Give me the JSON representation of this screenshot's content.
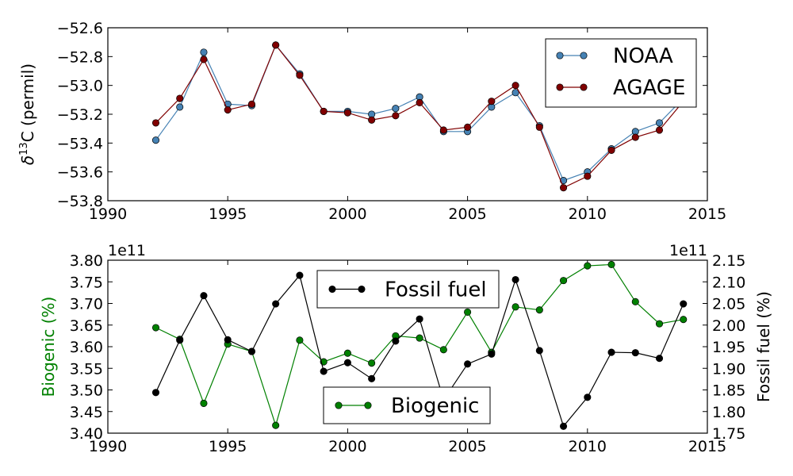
{
  "chart_data": [
    {
      "type": "line",
      "title": "",
      "xlabel": "",
      "ylabel_parts": [
        "δ",
        "13",
        "C (permil)"
      ],
      "xlim": [
        1990,
        2015
      ],
      "ylim": [
        -53.8,
        -52.6
      ],
      "xticks": [
        1990,
        1995,
        2000,
        2005,
        2010,
        2015
      ],
      "xtick_labels": [
        "1990",
        "1995",
        "2000",
        "2005",
        "2010",
        "2015"
      ],
      "yticks": [
        -53.8,
        -53.6,
        -53.4,
        -53.2,
        -53.0,
        -52.8,
        -52.6
      ],
      "ytick_labels": [
        "−53.8",
        "−53.6",
        "−53.4",
        "−53.2",
        "−53.0",
        "−52.8",
        "−52.6"
      ],
      "legend_position": "top-right",
      "x": [
        1992,
        1993,
        1994,
        1995,
        1996,
        1997,
        1998,
        1999,
        2000,
        2001,
        2002,
        2003,
        2004,
        2005,
        2006,
        2007,
        2008,
        2009,
        2010,
        2011,
        2012,
        2013,
        2014
      ],
      "series": [
        {
          "name": "NOAA",
          "color": "#4682b4",
          "values": [
            -53.38,
            -53.15,
            -52.77,
            -53.13,
            -53.14,
            -52.72,
            -52.92,
            -53.18,
            -53.18,
            -53.2,
            -53.16,
            -53.08,
            -53.32,
            -53.32,
            -53.15,
            -53.05,
            -53.28,
            -53.66,
            -53.6,
            -53.44,
            -53.32,
            -53.26,
            -53.09
          ]
        },
        {
          "name": "AGAGE",
          "color": "#800000",
          "values": [
            -53.26,
            -53.09,
            -52.82,
            -53.17,
            -53.13,
            -52.72,
            -52.93,
            -53.18,
            -53.19,
            -53.24,
            -53.21,
            -53.12,
            -53.31,
            -53.29,
            -53.11,
            -53.0,
            -53.29,
            -53.71,
            -53.63,
            -53.45,
            -53.36,
            -53.31,
            -53.11
          ]
        }
      ]
    },
    {
      "type": "line",
      "title": "",
      "xlabel": "",
      "ylabel_left": "Biogenic (%)",
      "ylabel_right": "Fossil fuel (%)",
      "offset_left": "1e11",
      "offset_right": "1e11",
      "xlim": [
        1990,
        2015
      ],
      "ylim_left": [
        3.4,
        3.8
      ],
      "ylim_right": [
        1.75,
        2.15
      ],
      "xticks": [
        1990,
        1995,
        2000,
        2005,
        2010,
        2015
      ],
      "xtick_labels": [
        "1990",
        "1995",
        "2000",
        "2005",
        "2010",
        "2015"
      ],
      "yticks_left": [
        3.4,
        3.45,
        3.5,
        3.55,
        3.6,
        3.65,
        3.7,
        3.75,
        3.8
      ],
      "ytick_labels_left": [
        "3.40",
        "3.45",
        "3.50",
        "3.55",
        "3.60",
        "3.65",
        "3.70",
        "3.75",
        "3.80"
      ],
      "yticks_right": [
        1.75,
        1.8,
        1.85,
        1.9,
        1.95,
        2.0,
        2.05,
        2.1,
        2.15
      ],
      "ytick_labels_right": [
        "1.75",
        "1.80",
        "1.85",
        "1.90",
        "1.95",
        "2.00",
        "2.05",
        "2.10",
        "2.15"
      ],
      "x": [
        1992,
        1993,
        1994,
        1995,
        1996,
        1997,
        1998,
        1999,
        2000,
        2001,
        2002,
        2003,
        2004,
        2005,
        2006,
        2007,
        2008,
        2009,
        2010,
        2011,
        2012,
        2013,
        2014
      ],
      "series": [
        {
          "name": "Biogenic",
          "axis": "left",
          "color": "#008000",
          "legend_position": "bottom-center",
          "values": [
            3.644,
            3.617,
            3.469,
            3.606,
            3.589,
            3.418,
            3.615,
            3.565,
            3.585,
            3.562,
            3.625,
            3.62,
            3.593,
            3.68,
            3.587,
            3.692,
            3.685,
            3.753,
            3.787,
            3.79,
            3.704,
            3.653,
            3.663
          ]
        },
        {
          "name": "Fossil fuel",
          "axis": "right",
          "color": "#000000",
          "legend_position": "top-center",
          "values": [
            1.844,
            1.965,
            2.068,
            1.966,
            1.939,
            2.049,
            2.115,
            1.893,
            1.913,
            1.876,
            1.963,
            2.014,
            1.827,
            1.91,
            1.933,
            2.105,
            1.941,
            1.766,
            1.833,
            1.937,
            1.936,
            1.923,
            2.049
          ]
        }
      ]
    }
  ]
}
